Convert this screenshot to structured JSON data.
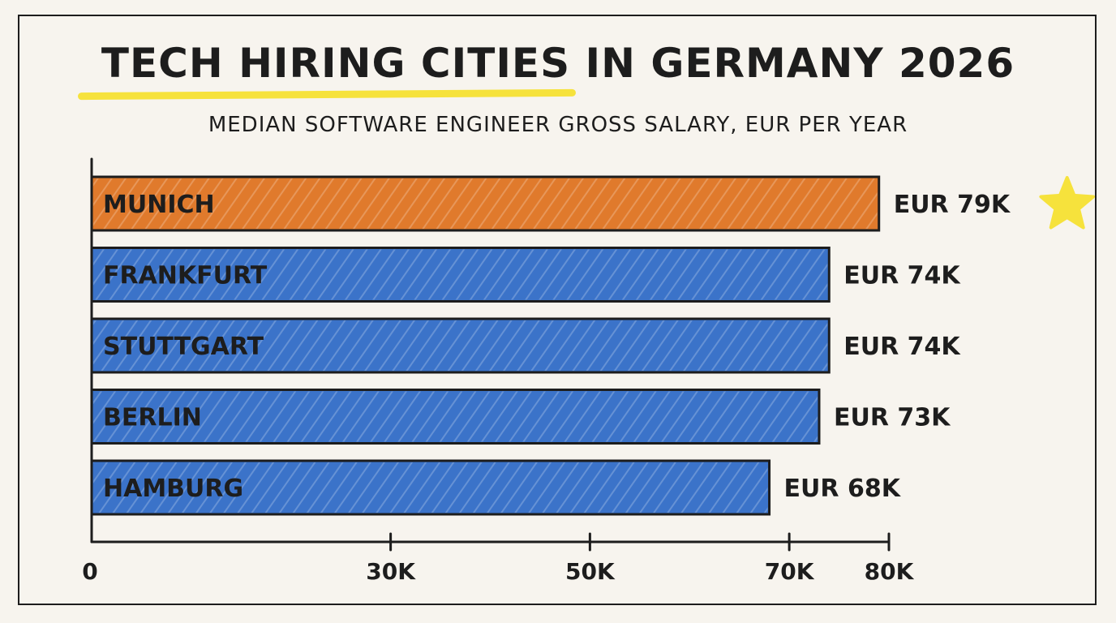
{
  "colors": {
    "background": "#f7f4ee",
    "ink": "#1d1d1d",
    "highlight_bar": "#e07a2c",
    "default_bar": "#3b73c9",
    "star": "#f6e23c"
  },
  "chart_data": {
    "type": "bar",
    "orientation": "horizontal",
    "title": "TECH HIRING CITIES IN GERMANY 2026",
    "subtitle": "MEDIAN SOFTWARE ENGINEER GROSS SALARY, EUR PER YEAR",
    "categories": [
      "MUNICH",
      "FRANKFURT",
      "STUTTGART",
      "BERLIN",
      "HAMBURG"
    ],
    "values": [
      79,
      74,
      74,
      73,
      68
    ],
    "value_labels": [
      "EUR 79K",
      "EUR 74K",
      "EUR 74K",
      "EUR 73K",
      "EUR 68K"
    ],
    "highlighted": "MUNICH",
    "xlim": [
      0,
      80
    ],
    "ticks": [
      {
        "value": 0,
        "label": "0"
      },
      {
        "value": 30,
        "label": "30K"
      },
      {
        "value": 50,
        "label": "50K"
      },
      {
        "value": 70,
        "label": "70K"
      },
      {
        "value": 80,
        "label": "80K"
      }
    ],
    "grid": false,
    "legend": "none",
    "annotation": "star-icon next to MUNICH"
  }
}
